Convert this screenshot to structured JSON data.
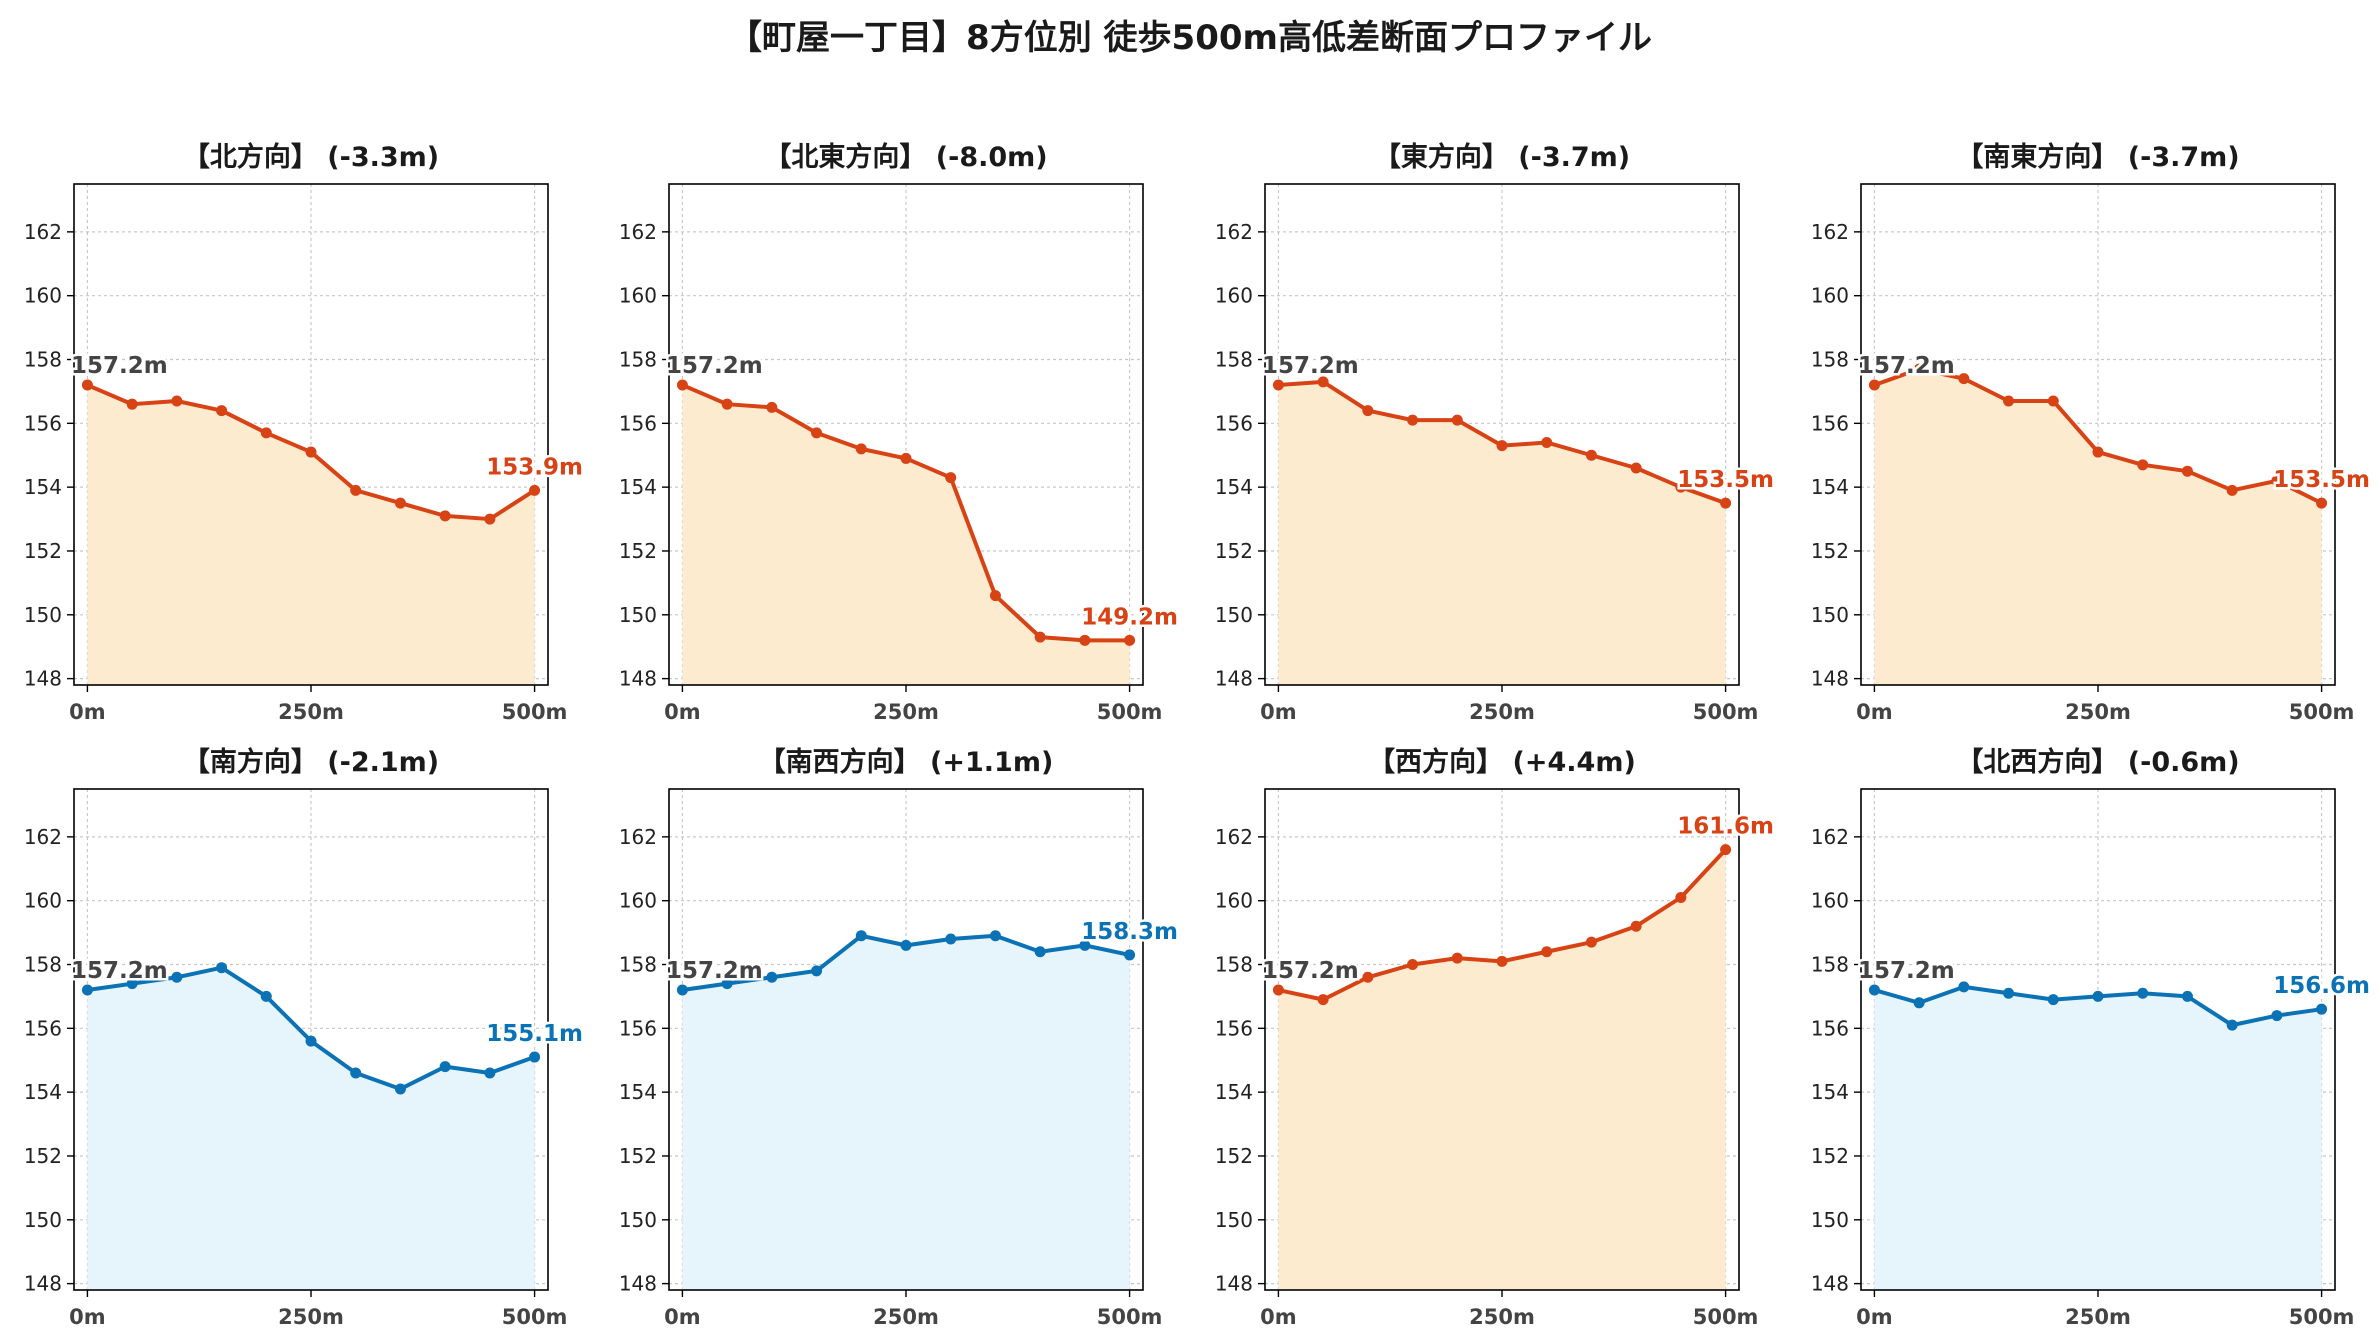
{
  "title": "【町屋一丁目】8方位別 徒歩500m高低差断面プロファイル",
  "colors": {
    "down_line": "#d84315",
    "down_fill": "#fdebd0",
    "up_line": "#0a72b5",
    "up_fill": "#e6f4fb",
    "west_line": "#d84315",
    "west_fill": "#fdebd0",
    "grid": "#c8c8c8"
  },
  "chart_data": [
    {
      "type": "area",
      "title": "【北方向】 (-3.3m)",
      "color_key": "down",
      "x": [
        0,
        50,
        100,
        150,
        200,
        250,
        300,
        350,
        400,
        450,
        500
      ],
      "y": [
        157.2,
        156.6,
        156.7,
        156.4,
        155.7,
        155.1,
        153.9,
        153.5,
        153.1,
        153.0,
        153.9
      ],
      "start_label": "157.2m",
      "end_label": "153.9m"
    },
    {
      "type": "area",
      "title": "【北東方向】 (-8.0m)",
      "color_key": "down",
      "x": [
        0,
        50,
        100,
        150,
        200,
        250,
        300,
        350,
        400,
        450,
        500
      ],
      "y": [
        157.2,
        156.6,
        156.5,
        155.7,
        155.2,
        154.9,
        154.3,
        150.6,
        149.3,
        149.2,
        149.2
      ],
      "start_label": "157.2m",
      "end_label": "149.2m"
    },
    {
      "type": "area",
      "title": "【東方向】 (-3.7m)",
      "color_key": "down",
      "x": [
        0,
        50,
        100,
        150,
        200,
        250,
        300,
        350,
        400,
        450,
        500
      ],
      "y": [
        157.2,
        157.3,
        156.4,
        156.1,
        156.1,
        155.3,
        155.4,
        155.0,
        154.6,
        154.0,
        153.5
      ],
      "start_label": "157.2m",
      "end_label": "153.5m"
    },
    {
      "type": "area",
      "title": "【南東方向】 (-3.7m)",
      "color_key": "down",
      "x": [
        0,
        50,
        100,
        150,
        200,
        250,
        300,
        350,
        400,
        450,
        500
      ],
      "y": [
        157.2,
        157.7,
        157.4,
        156.7,
        156.7,
        155.1,
        154.7,
        154.5,
        153.9,
        154.2,
        153.5
      ],
      "start_label": "157.2m",
      "end_label": "153.5m"
    },
    {
      "type": "area",
      "title": "【南方向】 (-2.1m)",
      "color_key": "up",
      "x": [
        0,
        50,
        100,
        150,
        200,
        250,
        300,
        350,
        400,
        450,
        500
      ],
      "y": [
        157.2,
        157.4,
        157.6,
        157.9,
        157.0,
        155.6,
        154.6,
        154.1,
        154.8,
        154.6,
        155.1
      ],
      "start_label": "157.2m",
      "end_label": "155.1m"
    },
    {
      "type": "area",
      "title": "【南西方向】 (+1.1m)",
      "color_key": "up",
      "x": [
        0,
        50,
        100,
        150,
        200,
        250,
        300,
        350,
        400,
        450,
        500
      ],
      "y": [
        157.2,
        157.4,
        157.6,
        157.8,
        158.9,
        158.6,
        158.8,
        158.9,
        158.4,
        158.6,
        158.3
      ],
      "start_label": "157.2m",
      "end_label": "158.3m"
    },
    {
      "type": "area",
      "title": "【西方向】 (+4.4m)",
      "color_key": "west",
      "x": [
        0,
        50,
        100,
        150,
        200,
        250,
        300,
        350,
        400,
        450,
        500
      ],
      "y": [
        157.2,
        156.9,
        157.6,
        158.0,
        158.2,
        158.1,
        158.4,
        158.7,
        159.2,
        160.1,
        161.6
      ],
      "start_label": "157.2m",
      "end_label": "161.6m"
    },
    {
      "type": "area",
      "title": "【北西方向】 (-0.6m)",
      "color_key": "up",
      "x": [
        0,
        50,
        100,
        150,
        200,
        250,
        300,
        350,
        400,
        450,
        500
      ],
      "y": [
        157.2,
        156.8,
        157.3,
        157.1,
        156.9,
        157.0,
        157.1,
        157.0,
        156.1,
        156.4,
        156.6
      ],
      "start_label": "157.2m",
      "end_label": "156.6m"
    }
  ],
  "axes": {
    "xlim": [
      -15,
      515
    ],
    "ylim": [
      147.8,
      163.5
    ],
    "yticks": [
      148,
      150,
      152,
      154,
      156,
      158,
      160,
      162
    ],
    "xticks": [
      0,
      250,
      500
    ],
    "xtick_labels": [
      "0m",
      "250m",
      "500m"
    ],
    "grid": true
  }
}
